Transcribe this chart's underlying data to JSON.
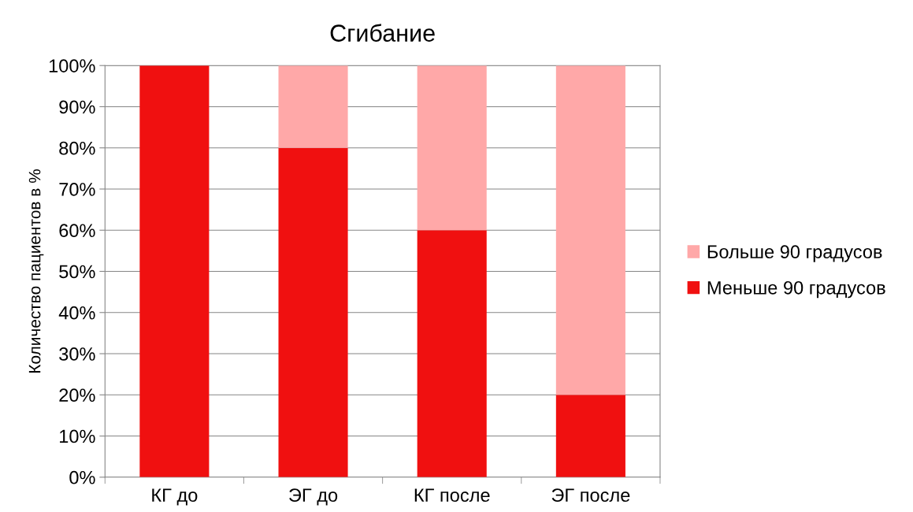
{
  "chart_data": {
    "type": "bar",
    "title": "Сгибание",
    "ylabel": "Количество пациентов в %",
    "stacked": true,
    "categories": [
      "КГ до",
      "ЭГ до",
      "КГ после",
      "ЭГ после"
    ],
    "series": [
      {
        "name": "Меньше 90 градусов",
        "color": "#f01010",
        "values": [
          100,
          80,
          60,
          20
        ]
      },
      {
        "name": "Больше 90 градусов",
        "color": "#ffa8a8",
        "values": [
          0,
          20,
          40,
          80
        ]
      }
    ],
    "ylim": [
      0,
      100
    ],
    "yticks": [
      {
        "value": 0,
        "label": "0%"
      },
      {
        "value": 10,
        "label": "10%"
      },
      {
        "value": 20,
        "label": "20%"
      },
      {
        "value": 30,
        "label": "30%"
      },
      {
        "value": 40,
        "label": "40%"
      },
      {
        "value": 50,
        "label": "50%"
      },
      {
        "value": 60,
        "label": "60%"
      },
      {
        "value": 70,
        "label": "70%"
      },
      {
        "value": 80,
        "label": "80%"
      },
      {
        "value": 90,
        "label": "90%"
      },
      {
        "value": 100,
        "label": "100%"
      }
    ],
    "grid": "y",
    "legend": "right"
  }
}
